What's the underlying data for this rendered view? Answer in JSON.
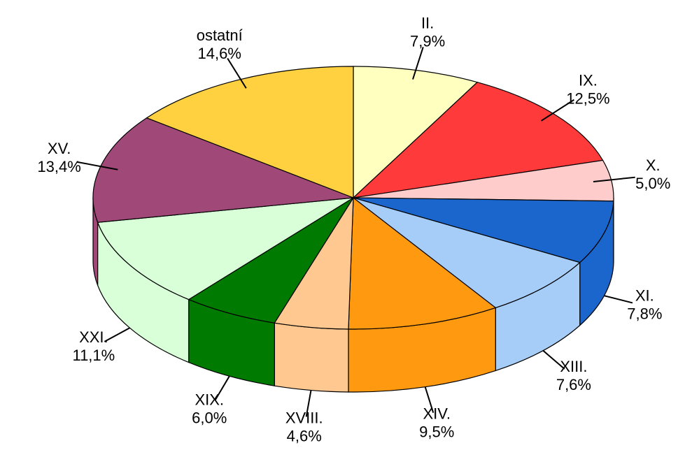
{
  "chart_data": {
    "type": "pie",
    "categories": [
      "II.",
      "IX.",
      "X.",
      "XI.",
      "XIII.",
      "XIV.",
      "XVIII.",
      "XIX.",
      "XXI.",
      "XV.",
      "ostatní"
    ],
    "values": [
      7.9,
      12.5,
      5.0,
      7.8,
      7.6,
      9.5,
      4.6,
      6.0,
      11.1,
      13.4,
      14.6
    ],
    "value_labels": [
      "7,9%",
      "12,5%",
      "5,0%",
      "7,8%",
      "7,6%",
      "9,5%",
      "4,6%",
      "6,0%",
      "11,1%",
      "13,4%",
      "14,6%"
    ],
    "colors": [
      "#ffffc0",
      "#ff3a3a",
      "#ffcccc",
      "#1a66cc",
      "#a6ccf8",
      "#ff9a10",
      "#ffc890",
      "#007a00",
      "#d8ffd8",
      "#a04878",
      "#ffd040"
    ]
  }
}
